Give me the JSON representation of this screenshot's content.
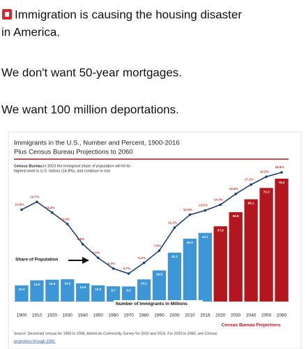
{
  "post": {
    "lines": [
      "Immigration is causing the housing disaster",
      "in America.",
      "We don't want 50-year mortgages.",
      "We want 100 million deportations."
    ]
  },
  "chart_data": {
    "type": "bar-line",
    "title": [
      "Immigrants in the U.S., Number and Percent, 1900-2016",
      "Plus Census Bureau Projections to 2060"
    ],
    "note_label": "Census Bureau:",
    "note": [
      "In 2023 the immigrant share of population will hit its",
      "highest level in U.S. history (14.8%), and continue to rise."
    ],
    "categories": [
      "1900",
      "1910",
      "1920",
      "1930",
      "1940",
      "1950",
      "1960",
      "1970",
      "1980",
      "1990",
      "2000",
      "2010",
      "2016",
      "2020",
      "2030",
      "2040",
      "2050",
      "2060"
    ],
    "series": [
      {
        "name": "Number of Immigrants in Millions",
        "color": "#3d97d6",
        "kind": "bar",
        "values": [
          10.3,
          13.5,
          13.9,
          14.2,
          11.6,
          10.3,
          9.7,
          9.6,
          14.1,
          19.8,
          31.1,
          40.0,
          43.7,
          null,
          null,
          null,
          null,
          null
        ],
        "value_labels": [
          "10.3",
          "13.5",
          "13.9",
          "14.2",
          "11.6",
          "10.3",
          "9.7",
          "9.6",
          "14.1",
          "19.8",
          "31.1",
          "40.0",
          "43.7",
          null,
          null,
          null,
          null,
          null
        ]
      },
      {
        "name": "Census Bureau Projections",
        "color": "#b3161d",
        "kind": "bar",
        "values": [
          null,
          null,
          null,
          null,
          null,
          null,
          null,
          null,
          null,
          null,
          null,
          null,
          null,
          47.9,
          56.9,
          65.1,
          72.3,
          78.2
        ],
        "value_labels": [
          null,
          null,
          null,
          null,
          null,
          null,
          null,
          null,
          null,
          null,
          null,
          null,
          null,
          "47.9",
          "56.9",
          "65.1",
          "72.3",
          "78.2"
        ]
      },
      {
        "name": "Share of Population",
        "color": "#1f3f73",
        "kind": "line",
        "values": [
          13.6,
          14.7,
          13.2,
          11.6,
          8.8,
          6.9,
          5.4,
          4.7,
          6.2,
          7.9,
          11.1,
          12.9,
          13.5,
          14.3,
          15.8,
          17.1,
          18.2,
          18.8
        ],
        "value_labels": [
          "13.6%",
          "14.7%",
          "13.2%",
          "11.6%",
          "8.8%",
          "6.9%",
          "5.4%",
          "4.7%",
          "6.2%",
          "7.9%",
          "11.1%",
          "12.9%",
          "13.5%",
          "14.3%",
          "15.8%",
          "17.1%",
          "18.2%",
          "18.8%"
        ]
      }
    ],
    "source": [
      "Source: Decennial census for 1900 to 2000, American Community Survey for 2010 and 2016. For 2020 to 2060, see Census",
      "projections through 2060."
    ]
  }
}
